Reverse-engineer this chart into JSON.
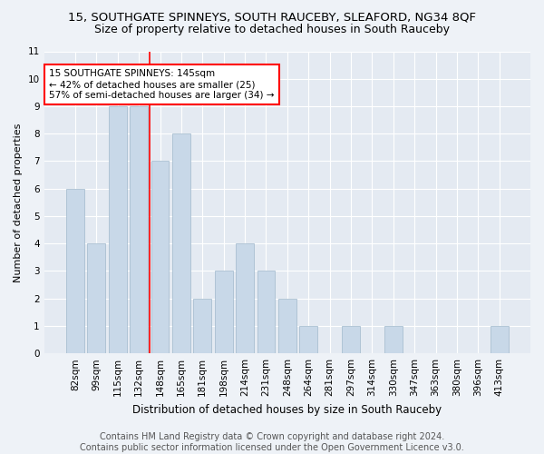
{
  "title": "15, SOUTHGATE SPINNEYS, SOUTH RAUCEBY, SLEAFORD, NG34 8QF",
  "subtitle": "Size of property relative to detached houses in South Rauceby",
  "xlabel": "Distribution of detached houses by size in South Rauceby",
  "ylabel": "Number of detached properties",
  "categories": [
    "82sqm",
    "99sqm",
    "115sqm",
    "132sqm",
    "148sqm",
    "165sqm",
    "181sqm",
    "198sqm",
    "214sqm",
    "231sqm",
    "248sqm",
    "264sqm",
    "281sqm",
    "297sqm",
    "314sqm",
    "330sqm",
    "347sqm",
    "363sqm",
    "380sqm",
    "396sqm",
    "413sqm"
  ],
  "values": [
    6,
    4,
    9,
    9,
    7,
    8,
    2,
    3,
    4,
    3,
    2,
    1,
    0,
    1,
    0,
    1,
    0,
    0,
    0,
    0,
    1
  ],
  "bar_color": "#c8d8e8",
  "bar_edge_color": "#a0b8cc",
  "ref_line_index": 3.5,
  "annotation_text": "15 SOUTHGATE SPINNEYS: 145sqm\n← 42% of detached houses are smaller (25)\n57% of semi-detached houses are larger (34) →",
  "annotation_box_color": "white",
  "annotation_box_edge_color": "red",
  "ylim": [
    0,
    11
  ],
  "yticks": [
    0,
    1,
    2,
    3,
    4,
    5,
    6,
    7,
    8,
    9,
    10,
    11
  ],
  "footer": "Contains HM Land Registry data © Crown copyright and database right 2024.\nContains public sector information licensed under the Open Government Licence v3.0.",
  "bg_color": "#eef2f7",
  "plot_bg_color": "#e4eaf2",
  "grid_color": "#ffffff",
  "title_fontsize": 9.5,
  "subtitle_fontsize": 9,
  "xlabel_fontsize": 8.5,
  "ylabel_fontsize": 8,
  "footer_fontsize": 7,
  "tick_fontsize": 7.5,
  "ann_fontsize": 7.5
}
